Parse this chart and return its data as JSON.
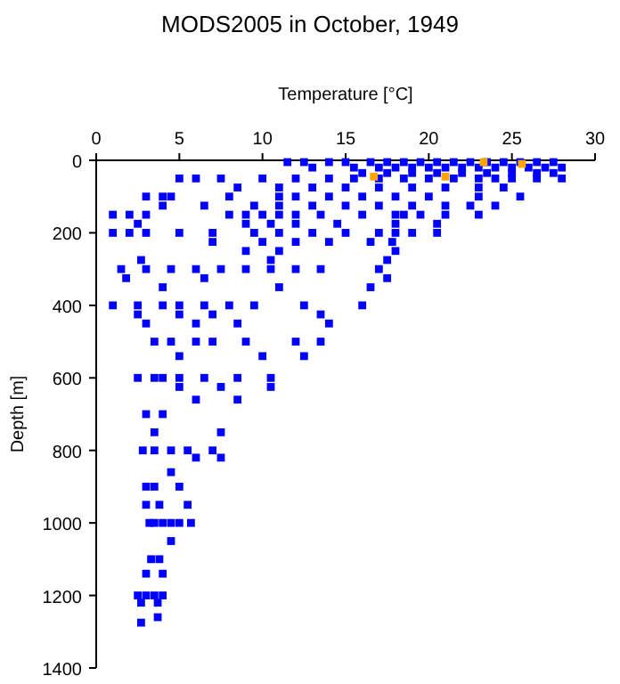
{
  "chart_data": {
    "type": "scatter",
    "title": "MODS2005 in October, 1949",
    "xlabel": "Temperature [°C]",
    "ylabel": "Depth [m]",
    "xlim": [
      0,
      30
    ],
    "xticks": [
      0,
      5,
      10,
      15,
      20,
      25,
      30
    ],
    "ylim": [
      1400,
      0
    ],
    "yticks": [
      0,
      200,
      400,
      600,
      800,
      1000,
      1200,
      1400
    ],
    "grid": false,
    "marker": "square",
    "series": [
      {
        "color": "#0000ff",
        "x": [
          11.5,
          12.5,
          14,
          15,
          16.5,
          17.5,
          18.5,
          19.5,
          20.5,
          21.5,
          22.5,
          23.5,
          24.5,
          25.5,
          26.5,
          27.5,
          13,
          15.5,
          17,
          18,
          19,
          20,
          21,
          22,
          23,
          24,
          25,
          26,
          27,
          28,
          16,
          17.5,
          19,
          20.5,
          22,
          23.5,
          25,
          26.5,
          27.5,
          5,
          6,
          7.5,
          10,
          12,
          14,
          15.5,
          17,
          18.5,
          20,
          21.5,
          23,
          24,
          25,
          26.5,
          28,
          8.5,
          11,
          13,
          15,
          17,
          19,
          21,
          23,
          24.5,
          3,
          4,
          4.5,
          8,
          11,
          12,
          14,
          16,
          18,
          20,
          23,
          25.5,
          4,
          6.5,
          9.5,
          11,
          13,
          15,
          17,
          19,
          21,
          22.5,
          24,
          1,
          2,
          3,
          8,
          9,
          10,
          11,
          12,
          13.5,
          16,
          18,
          18.5,
          19.5,
          21,
          23,
          2.5,
          9,
          10.5,
          12,
          14.5,
          18,
          20.5,
          1,
          2,
          3,
          5,
          7,
          9.5,
          11,
          13,
          15,
          17,
          18,
          19,
          20.5,
          7,
          10,
          12,
          14,
          16.5,
          17.8,
          9,
          11,
          18,
          2.7,
          10.5,
          17.5,
          1.5,
          3,
          4.5,
          6,
          7.5,
          9,
          10.5,
          12,
          13.5,
          17,
          1.8,
          6.5,
          17.5,
          4,
          11,
          16.5,
          1,
          2.5,
          4,
          5,
          6.5,
          8,
          9.5,
          12.5,
          16,
          2.5,
          5,
          7,
          13.5,
          3,
          6,
          8.5,
          14,
          3.5,
          4.5,
          6,
          7,
          9,
          12,
          13.5,
          5,
          10,
          12.5,
          2.5,
          3.5,
          4,
          5,
          6.5,
          8.5,
          10.5,
          5,
          7.5,
          10.5,
          6,
          8.5,
          3,
          4,
          3.5,
          7.5,
          2.8,
          3.5,
          4.5,
          5.5,
          7,
          6,
          7.5,
          4.5,
          3,
          3.5,
          5,
          3.8,
          5.5,
          3,
          3.2,
          3.5,
          4,
          4.5,
          5,
          5.7,
          4.5,
          3.3,
          3.8,
          3,
          4,
          2.5,
          3,
          3.5,
          4,
          2.7,
          3.7,
          3.7,
          2.7
        ],
        "values": [
          5,
          5,
          5,
          5,
          5,
          5,
          5,
          5,
          5,
          5,
          5,
          5,
          5,
          5,
          5,
          5,
          20,
          20,
          20,
          20,
          20,
          20,
          20,
          20,
          20,
          20,
          20,
          20,
          20,
          20,
          35,
          35,
          35,
          35,
          35,
          35,
          35,
          35,
          35,
          50,
          50,
          50,
          50,
          50,
          50,
          50,
          50,
          50,
          50,
          50,
          50,
          50,
          50,
          50,
          50,
          75,
          75,
          75,
          75,
          75,
          75,
          75,
          75,
          75,
          100,
          100,
          100,
          100,
          100,
          100,
          100,
          100,
          100,
          100,
          100,
          100,
          125,
          125,
          125,
          125,
          125,
          125,
          125,
          125,
          125,
          125,
          125,
          150,
          150,
          150,
          150,
          150,
          150,
          150,
          150,
          150,
          150,
          150,
          150,
          150,
          150,
          150,
          175,
          175,
          175,
          175,
          175,
          175,
          175,
          200,
          200,
          200,
          200,
          200,
          200,
          200,
          200,
          200,
          200,
          200,
          200,
          200,
          225,
          225,
          225,
          225,
          225,
          225,
          250,
          250,
          250,
          275,
          275,
          275,
          300,
          300,
          300,
          300,
          300,
          300,
          300,
          300,
          300,
          300,
          325,
          325,
          325,
          350,
          350,
          350,
          400,
          400,
          400,
          400,
          400,
          400,
          400,
          400,
          400,
          425,
          425,
          425,
          425,
          450,
          450,
          450,
          450,
          500,
          500,
          500,
          500,
          500,
          500,
          500,
          540,
          540,
          540,
          600,
          600,
          600,
          600,
          600,
          600,
          600,
          625,
          625,
          625,
          660,
          660,
          700,
          700,
          750,
          750,
          800,
          800,
          800,
          800,
          800,
          820,
          820,
          860,
          900,
          900,
          900,
          950,
          950,
          950,
          1000,
          1000,
          1000,
          1000,
          1000,
          1000,
          1050,
          1100,
          1100,
          1140,
          1140,
          1200,
          1200,
          1200,
          1200,
          1220,
          1220,
          1260,
          1275
        ]
      },
      {
        "color": "#ffa500",
        "x": [
          23.3,
          25.6,
          16.7,
          21
        ],
        "values": [
          5,
          10,
          45,
          45
        ]
      }
    ]
  }
}
